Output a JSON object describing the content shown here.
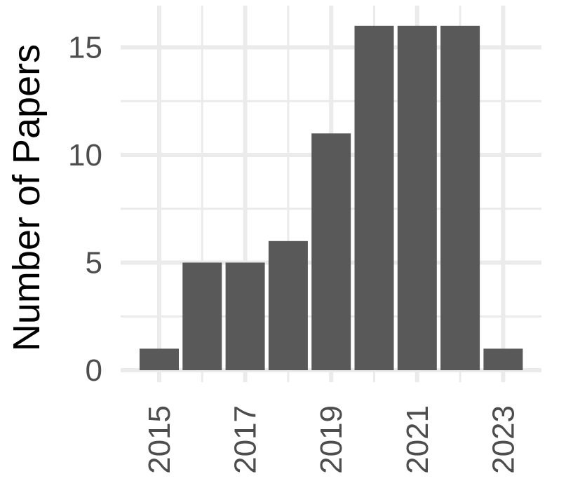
{
  "chart_data": {
    "type": "bar",
    "x": [
      2015,
      2016,
      2017,
      2018,
      2019,
      2020,
      2021,
      2022,
      2023
    ],
    "values": [
      1,
      5,
      5,
      6,
      11,
      16,
      16,
      16,
      1
    ],
    "xlabel": "",
    "ylabel": "Number of Papers",
    "x_ticks": [
      "2015",
      "2017",
      "2019",
      "2021",
      "2023"
    ],
    "y_ticks": [
      "0",
      "5",
      "10",
      "15"
    ],
    "ylim": [
      0,
      16.8
    ],
    "grid": true,
    "colors": {
      "bar": "#595959",
      "grid": "#ebebeb",
      "tick_text": "#4d4d4d",
      "title_text": "#000000"
    }
  }
}
